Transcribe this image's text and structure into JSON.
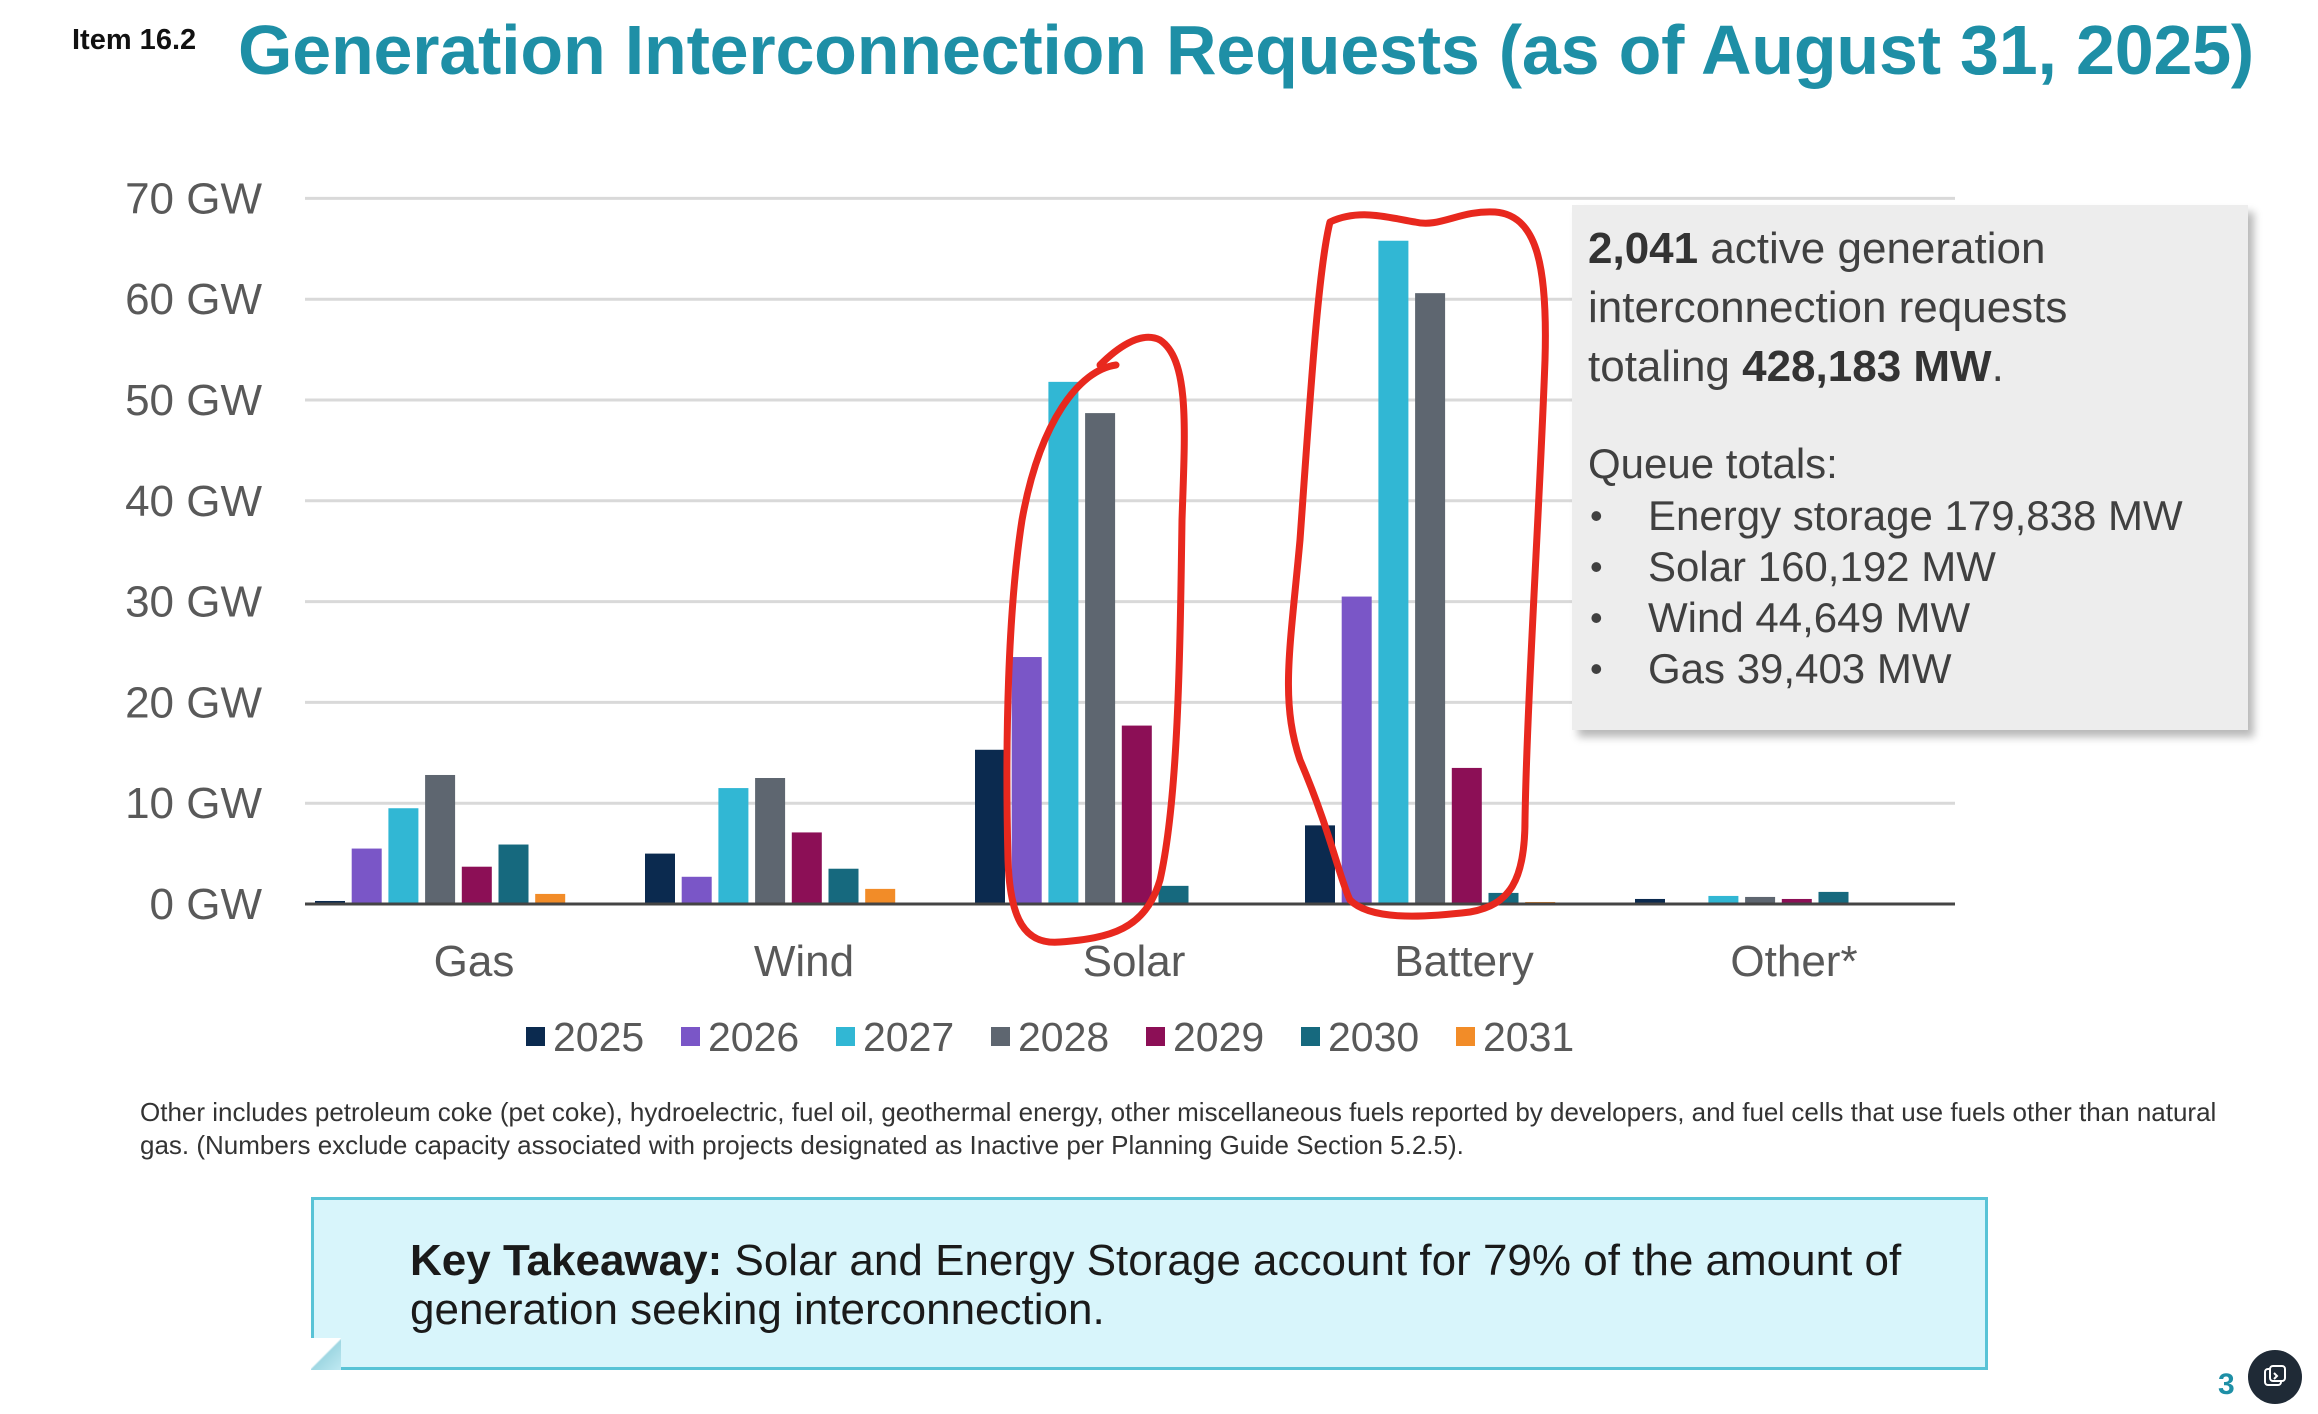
{
  "header": {
    "item_label": "Item 16.2",
    "title": "Generation Interconnection Requests (as of August 31, 2025)"
  },
  "chart_data": {
    "type": "bar",
    "title": "",
    "xlabel": "",
    "ylabel": "",
    "ylim": [
      0,
      70
    ],
    "y_ticks": [
      "0 GW",
      "10 GW",
      "20 GW",
      "30 GW",
      "40 GW",
      "50 GW",
      "60 GW",
      "70 GW"
    ],
    "categories": [
      "Gas",
      "Wind",
      "Solar",
      "Battery",
      "Other*"
    ],
    "series": [
      {
        "name": "2025",
        "color": "#0b2a4f",
        "values": [
          0.3,
          5.0,
          15.3,
          7.8,
          0.5
        ]
      },
      {
        "name": "2026",
        "color": "#7a56c7",
        "values": [
          5.5,
          2.7,
          24.5,
          30.5,
          0.1
        ]
      },
      {
        "name": "2027",
        "color": "#31b7d4",
        "values": [
          9.5,
          11.5,
          51.8,
          65.8,
          0.8
        ]
      },
      {
        "name": "2028",
        "color": "#5e6670",
        "values": [
          12.8,
          12.5,
          48.7,
          60.6,
          0.7
        ]
      },
      {
        "name": "2029",
        "color": "#8c0f56",
        "values": [
          3.7,
          7.1,
          17.7,
          13.5,
          0.5
        ]
      },
      {
        "name": "2030",
        "color": "#16697e",
        "values": [
          5.9,
          3.5,
          1.8,
          1.1,
          1.2
        ]
      },
      {
        "name": "2031",
        "color": "#f28c28",
        "values": [
          1.0,
          1.5,
          0.1,
          0.2,
          0.0
        ]
      }
    ],
    "grid": true,
    "legend_position": "bottom"
  },
  "info_box": {
    "count": "2,041",
    "line1_rest": " active generation",
    "line2": "interconnection requests",
    "line3_prefix": "totaling ",
    "total": "428,183 MW",
    "line3_suffix": ".",
    "queue_title": "Queue totals:",
    "bullet": "•",
    "queue_items": [
      "Energy storage 179,838 MW",
      "Solar 160,192 MW",
      "Wind 44,649 MW",
      "Gas 39,403 MW"
    ]
  },
  "footnote": "Other includes petroleum coke (pet coke), hydroelectric, fuel oil, geothermal energy, other miscellaneous fuels reported by developers, and fuel cells that use fuels other than natural gas. (Numbers exclude capacity associated with projects designated as Inactive per Planning Guide Section 5.2.5).",
  "takeaway": {
    "label": "Key Takeaway:",
    "text": " Solar and Energy Storage account for 79% of the amount of generation seeking interconnection."
  },
  "page_number": "3",
  "annotation_color": "#e8281e"
}
